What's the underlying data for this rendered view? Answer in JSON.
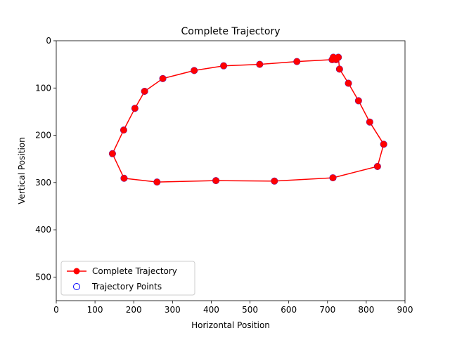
{
  "chart_data": {
    "type": "line",
    "title": "Complete Trajectory",
    "xlabel": "Horizontal Position",
    "ylabel": "Vertical Position",
    "xlim": [
      0,
      900
    ],
    "ylim": [
      550,
      0
    ],
    "y_inverted": true,
    "xticks": [
      0,
      100,
      200,
      300,
      400,
      500,
      600,
      700,
      800,
      900
    ],
    "yticks": [
      0,
      100,
      200,
      300,
      400,
      500
    ],
    "grid": false,
    "legend": {
      "placement": "lower-left",
      "entries": [
        {
          "label": "Complete Trajectory",
          "style": "line-marker",
          "color": "#ff0000"
        },
        {
          "label": "Trajectory Points",
          "style": "hollow-circle",
          "color": "#0000ff"
        }
      ]
    },
    "series": [
      {
        "name": "Complete Trajectory",
        "color": "#ff0000",
        "x": [
          715,
          722,
          728,
          731,
          754,
          780,
          809,
          845,
          829,
          714,
          563,
          412,
          260,
          175,
          145,
          174,
          203,
          228,
          275,
          356,
          432,
          525,
          621,
          712,
          715
        ],
        "y": [
          35,
          40,
          35,
          60,
          90,
          127,
          172,
          219,
          266,
          290,
          297,
          296,
          299,
          291,
          239,
          189,
          143,
          107,
          80,
          63,
          53,
          50,
          44,
          40,
          35
        ]
      },
      {
        "name": "Trajectory Points",
        "color": "#0000ff",
        "x": [
          715,
          722,
          728,
          731,
          754,
          780,
          809,
          845,
          829,
          714,
          563,
          412,
          260,
          175,
          145,
          174,
          203,
          228,
          275,
          356,
          432,
          525,
          621,
          712
        ],
        "y": [
          35,
          40,
          35,
          60,
          90,
          127,
          172,
          219,
          266,
          290,
          297,
          296,
          299,
          291,
          239,
          189,
          143,
          107,
          80,
          63,
          53,
          50,
          44,
          40
        ]
      }
    ]
  }
}
